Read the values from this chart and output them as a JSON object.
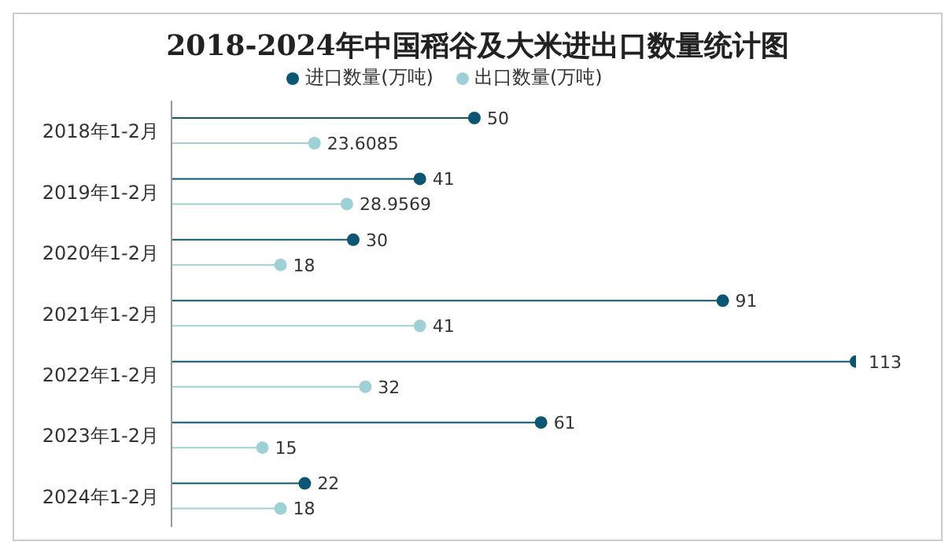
{
  "chart_data": {
    "type": "lollipop",
    "title": "2018-2024年中国稻谷及大米进出口数量统计图",
    "orientation": "horizontal",
    "categories": [
      "2018年1-2月",
      "2019年1-2月",
      "2020年1-2月",
      "2021年1-2月",
      "2022年1-2月",
      "2023年1-2月",
      "2024年1-2月"
    ],
    "series": [
      {
        "name": "进口数量(万吨)",
        "color": "#0b5673",
        "values": [
          50,
          41,
          30,
          91,
          113,
          61,
          22
        ]
      },
      {
        "name": "出口数量(万吨)",
        "color": "#9fd0d6",
        "values": [
          23.6085,
          28.9569,
          18,
          41,
          32,
          15,
          18
        ]
      }
    ],
    "data_labels": true,
    "legend": "top",
    "marker": "circle"
  }
}
